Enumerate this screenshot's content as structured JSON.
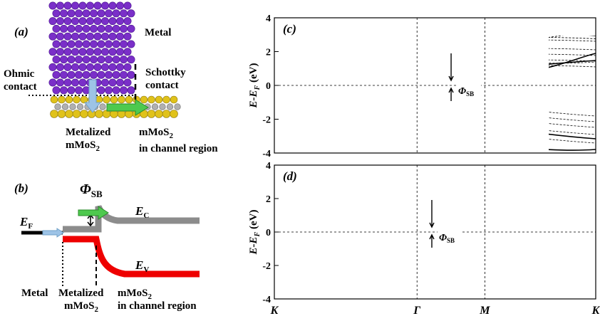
{
  "panel_a": {
    "label": "(a)",
    "metal": "Metal",
    "ohmic": [
      "Ohmic",
      "contact"
    ],
    "schottky": [
      "Schottky",
      "contact"
    ],
    "metalized": {
      "text": "Metalized",
      "mos": "mMoS",
      "sub": "2"
    },
    "channel": {
      "mos": "mMoS",
      "sub": "2",
      "text": "in channel region"
    }
  },
  "panel_b": {
    "label": "(b)",
    "phi": "Φ",
    "phi_sub": "SB",
    "ef": "E",
    "ef_sub": "F",
    "ec": "E",
    "ec_sub": "C",
    "ev": "E",
    "ev_sub": "V",
    "metal": "Metal",
    "metalized": {
      "text": "Metalized",
      "mos": "mMoS",
      "sub": "2"
    },
    "channel": {
      "mos": "mMoS",
      "sub": "2",
      "text": "in channel region"
    }
  },
  "band_plots": [
    {
      "label": "(c)",
      "ylabel": {
        "main": "E-E",
        "sub": "F",
        "unit": " (eV)"
      },
      "ylim": [
        -4,
        4
      ],
      "yticks": [
        -4,
        -2,
        0,
        2,
        4
      ],
      "phi": "Φ",
      "phi_sub": "SB"
    },
    {
      "label": "(d)",
      "ylabel": {
        "main": "E-E",
        "sub": "F",
        "unit": " (eV)"
      },
      "ylim": [
        -4,
        4
      ],
      "yticks": [
        -4,
        -2,
        0,
        2,
        4
      ],
      "phi": "Φ",
      "phi_sub": "SB"
    }
  ],
  "x_labels": [
    "K",
    "Γ",
    "M",
    "K"
  ]
}
